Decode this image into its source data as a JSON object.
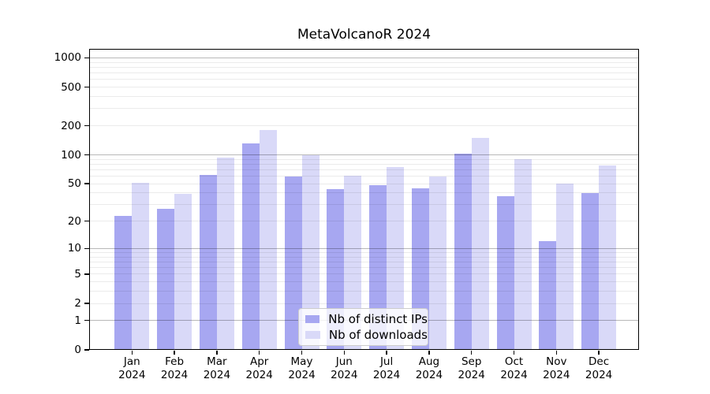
{
  "chart_data": {
    "type": "bar",
    "title": "MetaVolcanoR 2024",
    "scale": "log1p",
    "categories": [
      "Jan",
      "Feb",
      "Mar",
      "Apr",
      "May",
      "Jun",
      "Jul",
      "Aug",
      "Sep",
      "Oct",
      "Nov",
      "Dec"
    ],
    "year": "2024",
    "series": [
      {
        "name": "Nb of distinct IPs",
        "color": "#a7a7f1",
        "values": [
          23,
          27,
          62,
          132,
          59,
          44,
          48,
          45,
          103,
          37,
          12,
          40
        ]
      },
      {
        "name": "Nb of downloads",
        "color": "#d9d9f8",
        "values": [
          51,
          39,
          94,
          182,
          100,
          61,
          74,
          59,
          150,
          90,
          50,
          78
        ]
      }
    ],
    "yticks": [
      0,
      1,
      2,
      5,
      10,
      20,
      50,
      100,
      200,
      500,
      1000
    ],
    "ylim": [
      0,
      1000
    ],
    "xlabel": "",
    "ylabel": "",
    "grid": "log minor lines light gray, powers of 10 dark gray, drawn over bars",
    "legend_position": "inside bottom-center"
  },
  "colors": {
    "background": "#ffffff",
    "plot_border": "#000000",
    "legend_border": "#cccccc"
  }
}
